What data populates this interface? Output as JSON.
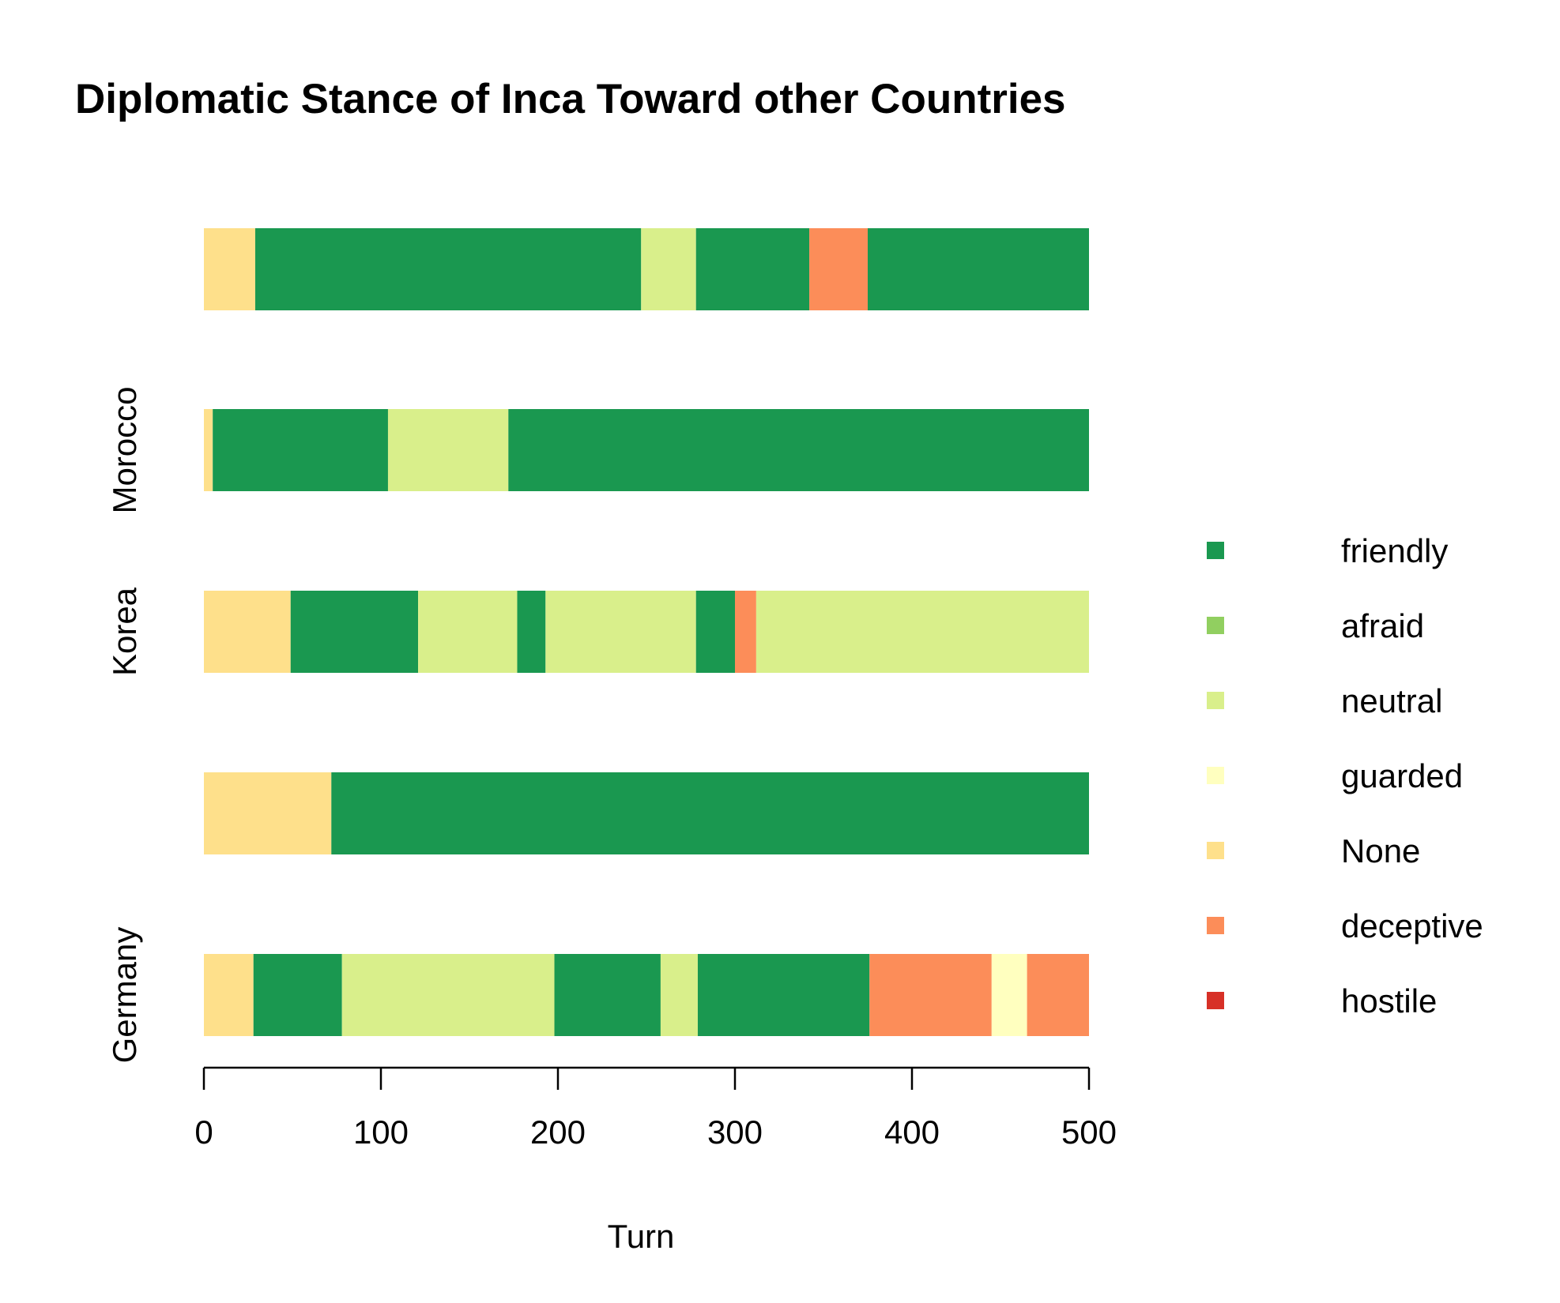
{
  "chart_data": {
    "type": "bar",
    "orientation": "horizontal-stacked",
    "title": "Diplomatic Stance of Inca Toward other Countries",
    "xlabel": "Turn",
    "ylabel": "",
    "xlim": [
      0,
      500
    ],
    "xticks": [
      0,
      100,
      200,
      300,
      400,
      500
    ],
    "grid": false,
    "legend_position": "right",
    "legend": [
      {
        "label": "friendly",
        "color": "#1a9850"
      },
      {
        "label": "afraid",
        "color": "#91cf60"
      },
      {
        "label": "neutral",
        "color": "#d9ef8b"
      },
      {
        "label": "guarded",
        "color": "#ffffbf"
      },
      {
        "label": "None",
        "color": "#fee08b"
      },
      {
        "label": "deceptive",
        "color": "#fc8d59"
      },
      {
        "label": "hostile",
        "color": "#d73027"
      }
    ],
    "rows": [
      {
        "label": "Germany",
        "segments": [
          {
            "stance": "None",
            "start": 0,
            "end": 28
          },
          {
            "stance": "friendly",
            "start": 28,
            "end": 78
          },
          {
            "stance": "neutral",
            "start": 78,
            "end": 198
          },
          {
            "stance": "friendly",
            "start": 198,
            "end": 258
          },
          {
            "stance": "neutral",
            "start": 258,
            "end": 279
          },
          {
            "stance": "friendly",
            "start": 279,
            "end": 376
          },
          {
            "stance": "deceptive",
            "start": 376,
            "end": 445
          },
          {
            "stance": "guarded",
            "start": 445,
            "end": 465
          },
          {
            "stance": "deceptive",
            "start": 465,
            "end": 500
          }
        ]
      },
      {
        "label": "",
        "segments": [
          {
            "stance": "None",
            "start": 0,
            "end": 72
          },
          {
            "stance": "friendly",
            "start": 72,
            "end": 500
          }
        ]
      },
      {
        "label": "Korea",
        "segments": [
          {
            "stance": "None",
            "start": 0,
            "end": 49
          },
          {
            "stance": "friendly",
            "start": 49,
            "end": 121
          },
          {
            "stance": "neutral",
            "start": 121,
            "end": 177
          },
          {
            "stance": "friendly",
            "start": 177,
            "end": 193
          },
          {
            "stance": "neutral",
            "start": 193,
            "end": 278
          },
          {
            "stance": "friendly",
            "start": 278,
            "end": 300
          },
          {
            "stance": "deceptive",
            "start": 300,
            "end": 312
          },
          {
            "stance": "neutral",
            "start": 312,
            "end": 500
          }
        ]
      },
      {
        "label": "Morocco",
        "segments": [
          {
            "stance": "None",
            "start": 0,
            "end": 5
          },
          {
            "stance": "friendly",
            "start": 5,
            "end": 104
          },
          {
            "stance": "neutral",
            "start": 104,
            "end": 172
          },
          {
            "stance": "friendly",
            "start": 172,
            "end": 500
          }
        ]
      },
      {
        "label": "",
        "segments": [
          {
            "stance": "None",
            "start": 0,
            "end": 29
          },
          {
            "stance": "friendly",
            "start": 29,
            "end": 247
          },
          {
            "stance": "neutral",
            "start": 247,
            "end": 278
          },
          {
            "stance": "friendly",
            "start": 278,
            "end": 342
          },
          {
            "stance": "deceptive",
            "start": 342,
            "end": 375
          },
          {
            "stance": "friendly",
            "start": 375,
            "end": 500
          }
        ]
      }
    ]
  }
}
